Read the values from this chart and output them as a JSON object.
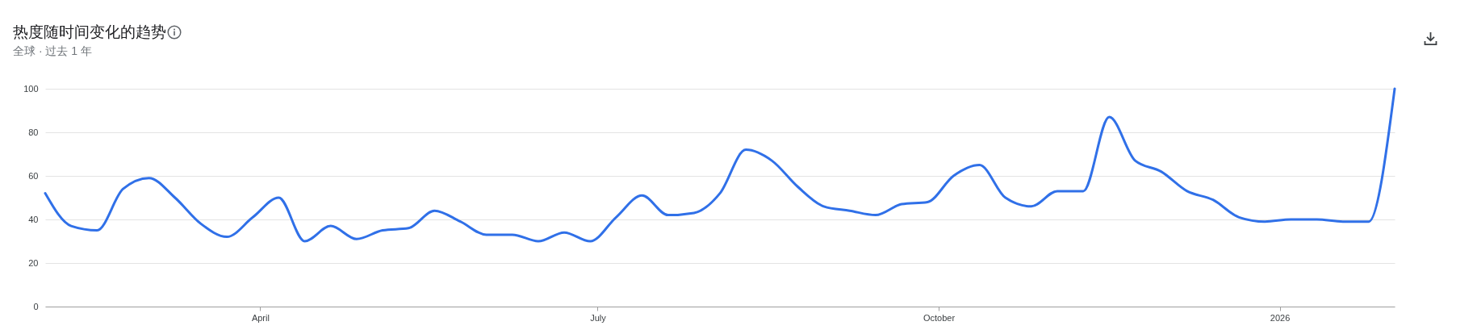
{
  "chart_data": {
    "type": "line",
    "title": "热度随时间变化的趋势",
    "subtitle": "全球 · 过去 1 年",
    "x": [
      "2025-02-02",
      "2025-02-09",
      "2025-02-16",
      "2025-02-23",
      "2025-03-02",
      "2025-03-09",
      "2025-03-16",
      "2025-03-23",
      "2025-03-30",
      "2025-04-06",
      "2025-04-13",
      "2025-04-20",
      "2025-04-27",
      "2025-05-04",
      "2025-05-11",
      "2025-05-18",
      "2025-05-25",
      "2025-06-01",
      "2025-06-08",
      "2025-06-15",
      "2025-06-22",
      "2025-06-29",
      "2025-07-06",
      "2025-07-13",
      "2025-07-20",
      "2025-07-27",
      "2025-08-03",
      "2025-08-10",
      "2025-08-17",
      "2025-08-24",
      "2025-08-31",
      "2025-09-07",
      "2025-09-14",
      "2025-09-21",
      "2025-09-28",
      "2025-10-05",
      "2025-10-12",
      "2025-10-19",
      "2025-10-26",
      "2025-11-02",
      "2025-11-09",
      "2025-11-16",
      "2025-11-23",
      "2025-11-30",
      "2025-12-07",
      "2025-12-14",
      "2025-12-21",
      "2025-12-28",
      "2026-01-04",
      "2026-01-11",
      "2026-01-18",
      "2026-01-25",
      "2026-02-01"
    ],
    "series": [
      {
        "color": "#3070e8",
        "values": [
          52,
          37,
          35,
          54,
          59,
          50,
          38,
          32,
          41,
          50,
          30,
          37,
          31,
          35,
          36,
          44,
          39,
          33,
          33,
          30,
          34,
          30,
          41,
          51,
          42,
          43,
          52,
          72,
          67,
          55,
          46,
          44,
          42,
          47,
          48,
          60,
          65,
          50,
          46,
          53,
          53,
          87,
          67,
          62,
          53,
          49,
          41,
          39,
          40,
          40,
          39,
          39,
          100
        ]
      }
    ],
    "xlim": [
      "2025-02-02",
      "2026-02-01"
    ],
    "xticks": [
      {
        "value": "2025-04-01",
        "label": "April"
      },
      {
        "value": "2025-07-01",
        "label": "July"
      },
      {
        "value": "2025-10-01",
        "label": "October"
      },
      {
        "value": "2026-01-01",
        "label": "2026"
      }
    ],
    "ylim": [
      0,
      100
    ],
    "yticks": [
      0,
      20,
      40,
      60,
      80,
      100
    ],
    "grid": "y",
    "line_style": "solid"
  }
}
